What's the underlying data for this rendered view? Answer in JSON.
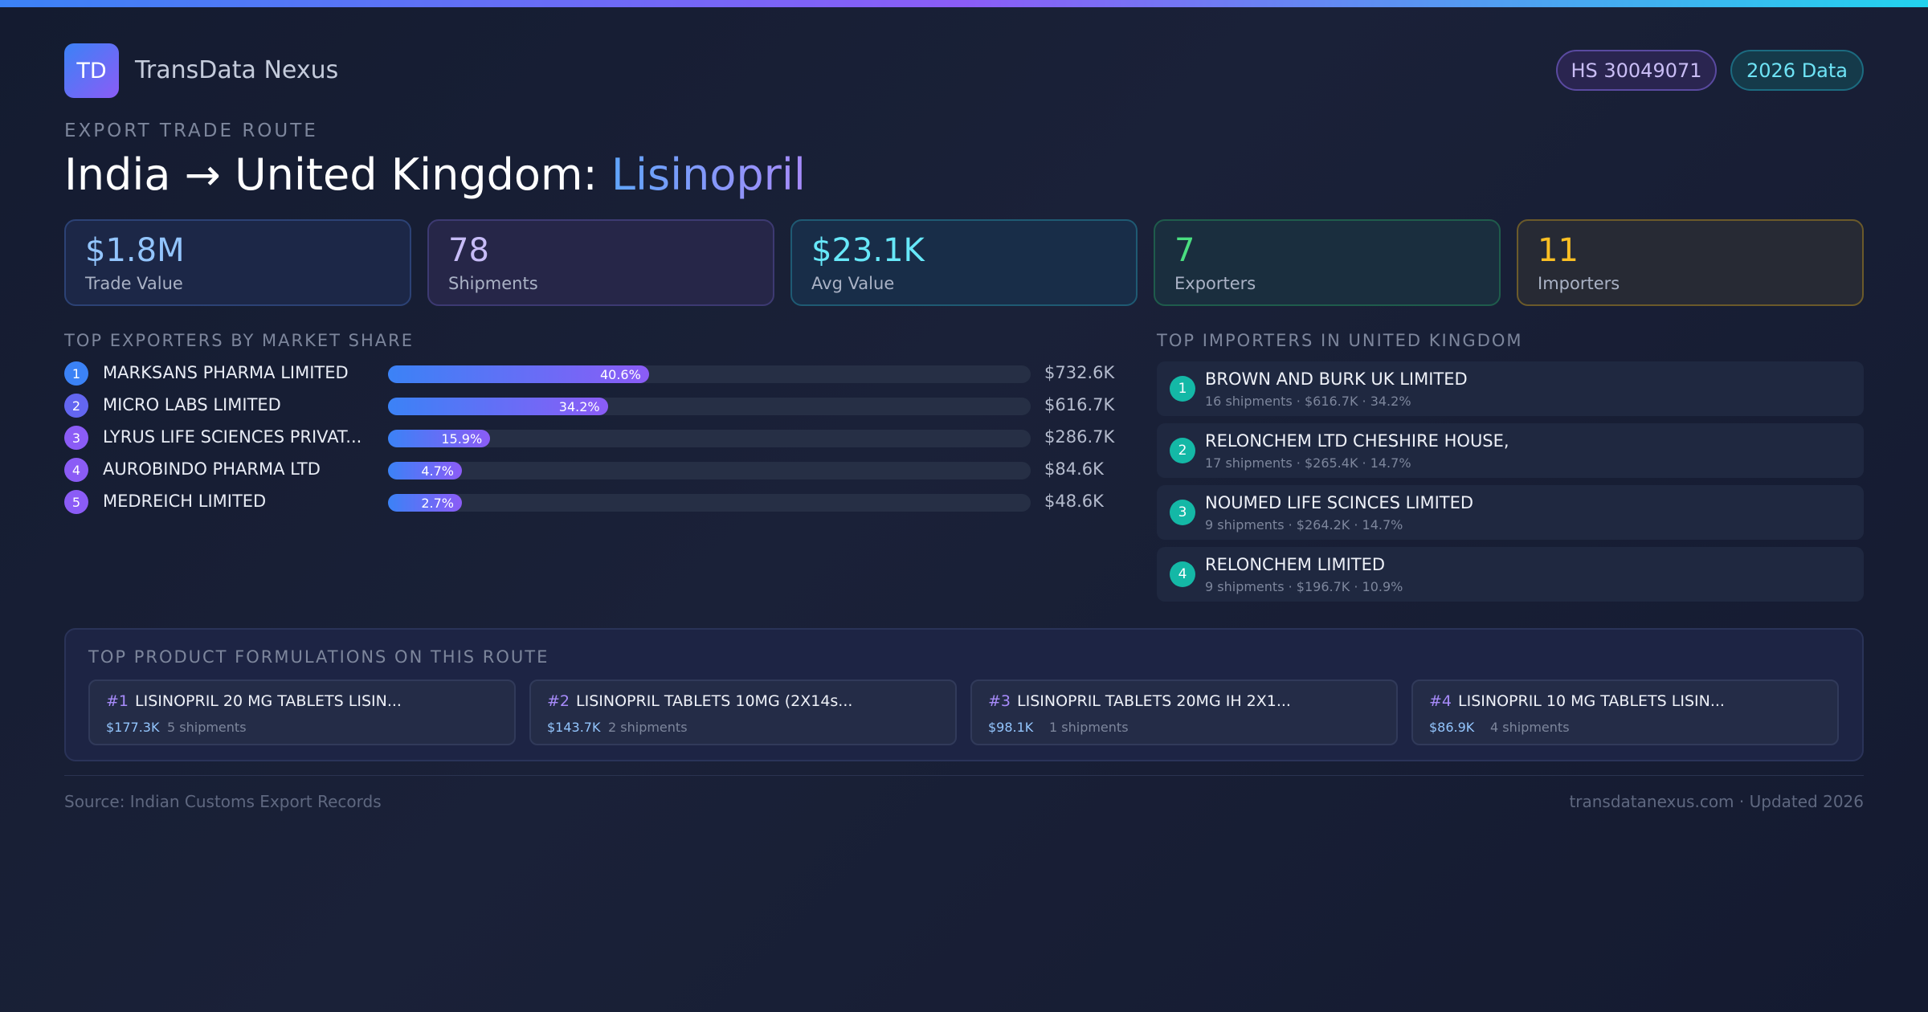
{
  "colors": {
    "accent_start": "#3b82f6",
    "accent_end": "#8b5cf6",
    "teal": "#14b8a6"
  },
  "header": {
    "logo": "TD",
    "brand": "TransData Nexus",
    "hs_code": "HS 30049071",
    "data_year": "2026 Data"
  },
  "route": {
    "eyebrow": "EXPORT TRADE ROUTE",
    "title_prefix": "India → United Kingdom: ",
    "product": "Lisinopril"
  },
  "stats": [
    {
      "value": "$1.8M",
      "label": "Trade Value"
    },
    {
      "value": "78",
      "label": "Shipments"
    },
    {
      "value": "$23.1K",
      "label": "Avg Value"
    },
    {
      "value": "7",
      "label": "Exporters"
    },
    {
      "value": "11",
      "label": "Importers"
    }
  ],
  "exporters": {
    "heading": "TOP EXPORTERS BY MARKET SHARE",
    "items": [
      {
        "rank": "1",
        "name": "MARKSANS PHARMA LIMITED",
        "share": 40.6,
        "share_label": "40.6%",
        "value": "$732.6K",
        "color": "#3b82f6"
      },
      {
        "rank": "2",
        "name": "MICRO LABS LIMITED",
        "share": 34.2,
        "share_label": "34.2%",
        "value": "$616.7K",
        "color": "#6366f1"
      },
      {
        "rank": "3",
        "name": "LYRUS LIFE SCIENCES PRIVAT...",
        "share": 15.9,
        "share_label": "15.9%",
        "value": "$286.7K",
        "color": "#8b5cf6"
      },
      {
        "rank": "4",
        "name": "AUROBINDO PHARMA LTD",
        "share": 4.7,
        "share_label": "4.7%",
        "value": "$84.6K",
        "color": "#8b5cf6"
      },
      {
        "rank": "5",
        "name": "MEDREICH LIMITED",
        "share": 2.7,
        "share_label": "2.7%",
        "value": "$48.6K",
        "color": "#8b5cf6"
      }
    ]
  },
  "importers": {
    "heading": "TOP IMPORTERS IN UNITED KINGDOM",
    "items": [
      {
        "rank": "1",
        "name": "BROWN AND BURK UK LIMITED",
        "meta": "16 shipments · $616.7K · 34.2%"
      },
      {
        "rank": "2",
        "name": "RELONCHEM LTD CHESHIRE HOUSE,",
        "meta": "17 shipments · $265.4K · 14.7%"
      },
      {
        "rank": "3",
        "name": "NOUMED LIFE SCINCES LIMITED",
        "meta": "9 shipments · $264.2K · 14.7%"
      },
      {
        "rank": "4",
        "name": "RELONCHEM LIMITED",
        "meta": "9 shipments · $196.7K · 10.9%"
      }
    ]
  },
  "formulations": {
    "heading": "TOP PRODUCT FORMULATIONS ON THIS ROUTE",
    "items": [
      {
        "rank": "#1",
        "name": "LISINOPRIL 20 MG TABLETS LISIN...",
        "value": "$177.3K",
        "shipments": "5 shipments"
      },
      {
        "rank": "#2",
        "name": "LISINOPRIL TABLETS 10MG (2X14s...",
        "value": "$143.7K",
        "shipments": "2 shipments"
      },
      {
        "rank": "#3",
        "name": "LISINOPRIL TABLETS 20MG IH 2X1...",
        "value": "$98.1K",
        "shipments": "1 shipments"
      },
      {
        "rank": "#4",
        "name": "LISINOPRIL 10 MG TABLETS LISIN...",
        "value": "$86.9K",
        "shipments": "4 shipments"
      }
    ]
  },
  "footer": {
    "source": "Source: Indian Customs Export Records",
    "site": "transdatanexus.com · Updated 2026"
  }
}
